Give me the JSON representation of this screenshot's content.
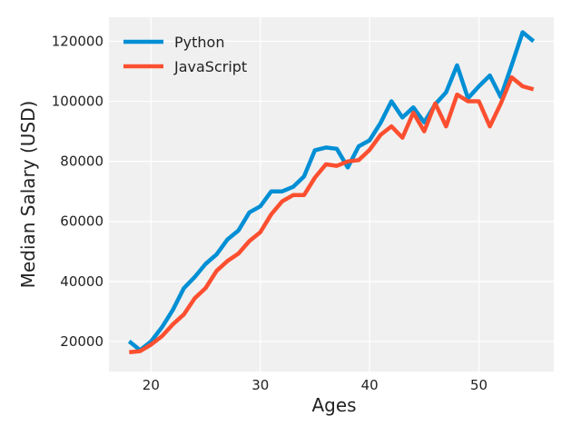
{
  "chart_data": {
    "type": "line",
    "title": "",
    "xlabel": "Ages",
    "ylabel": "Median Salary (USD)",
    "xlim": [
      16.15,
      56.85
    ],
    "ylim": [
      10000,
      128000
    ],
    "xticks": [
      20,
      30,
      40,
      50
    ],
    "yticks": [
      20000,
      40000,
      60000,
      80000,
      100000,
      120000
    ],
    "grid": true,
    "legend": "top-left",
    "x": [
      18,
      19,
      20,
      21,
      22,
      23,
      24,
      25,
      26,
      27,
      28,
      29,
      30,
      31,
      32,
      33,
      34,
      35,
      36,
      37,
      38,
      39,
      40,
      41,
      42,
      43,
      44,
      45,
      46,
      47,
      48,
      49,
      50,
      51,
      52,
      53,
      54,
      55
    ],
    "series": [
      {
        "name": "Python",
        "color": "#008fd5",
        "values": [
          20046,
          17100,
          20000,
          24744,
          30500,
          37732,
          41476,
          45846,
          49000,
          54000,
          57000,
          63000,
          65000,
          70000,
          70000,
          71500,
          75000,
          83700,
          84600,
          84200,
          78000,
          85000,
          87000,
          92800,
          100000,
          94600,
          98000,
          93000,
          99000,
          103000,
          112000,
          101000,
          105000,
          108600,
          101400,
          112000,
          123000,
          120000
        ]
      },
      {
        "name": "JavaScript",
        "color": "#fc4f30",
        "values": [
          16446,
          16791,
          18942,
          21780,
          25704,
          29000,
          34372,
          37810,
          43515,
          46823,
          49293,
          53437,
          56373,
          62375,
          66674,
          68745,
          68746,
          74583,
          79000,
          78508,
          79996,
          80403,
          83820,
          88833,
          91660,
          87892,
          96243,
          90000,
          99313,
          91660,
          102264,
          100000,
          100000,
          91660,
          99240,
          108000,
          105000,
          104000
        ]
      }
    ]
  }
}
